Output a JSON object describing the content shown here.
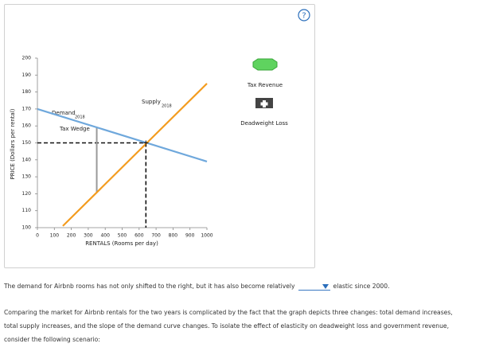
{
  "chart_data": {
    "type": "line",
    "x_label": "RENTALS (Rooms per day)",
    "y_label": "PRICE (Dollars per rental)",
    "xlim": [
      0,
      1000
    ],
    "ylim": [
      100,
      200
    ],
    "xticks": [
      0,
      100,
      200,
      300,
      400,
      500,
      600,
      700,
      800,
      900,
      1000
    ],
    "yticks": [
      100,
      110,
      120,
      130,
      140,
      150,
      160,
      170,
      180,
      190,
      200
    ],
    "series": [
      {
        "name": "Demand",
        "year": "2018",
        "color": "#6fa8dc",
        "x": [
          0,
          1000
        ],
        "values": [
          170,
          139
        ]
      },
      {
        "name": "Supply",
        "year": "2018",
        "color": "#f39c1f",
        "x": [
          150,
          1000
        ],
        "values": [
          101,
          185
        ]
      }
    ],
    "tax_wedge": {
      "label": "Tax Wedge",
      "x": 350,
      "top": 159,
      "bottom": 121,
      "color": "#999999"
    },
    "equilibrium": {
      "x": 640,
      "y": 150
    },
    "legend": [
      "Tax Revenue",
      "Deadweight Loss"
    ]
  },
  "text": {
    "sentence_start": "The demand for Airbnb rooms has not only shifted to the right, but it has also become relatively",
    "sentence_end": "elastic since 2000.",
    "paragraph": [
      "Comparing the market for Airbnb rentals for the two years is complicated by the fact that the graph depicts three changes: total demand increases,",
      "total supply increases, and the slope of the demand curve changes. To isolate the effect of elasticity on deadweight loss and government revenue,",
      "consider the following scenario:"
    ]
  }
}
